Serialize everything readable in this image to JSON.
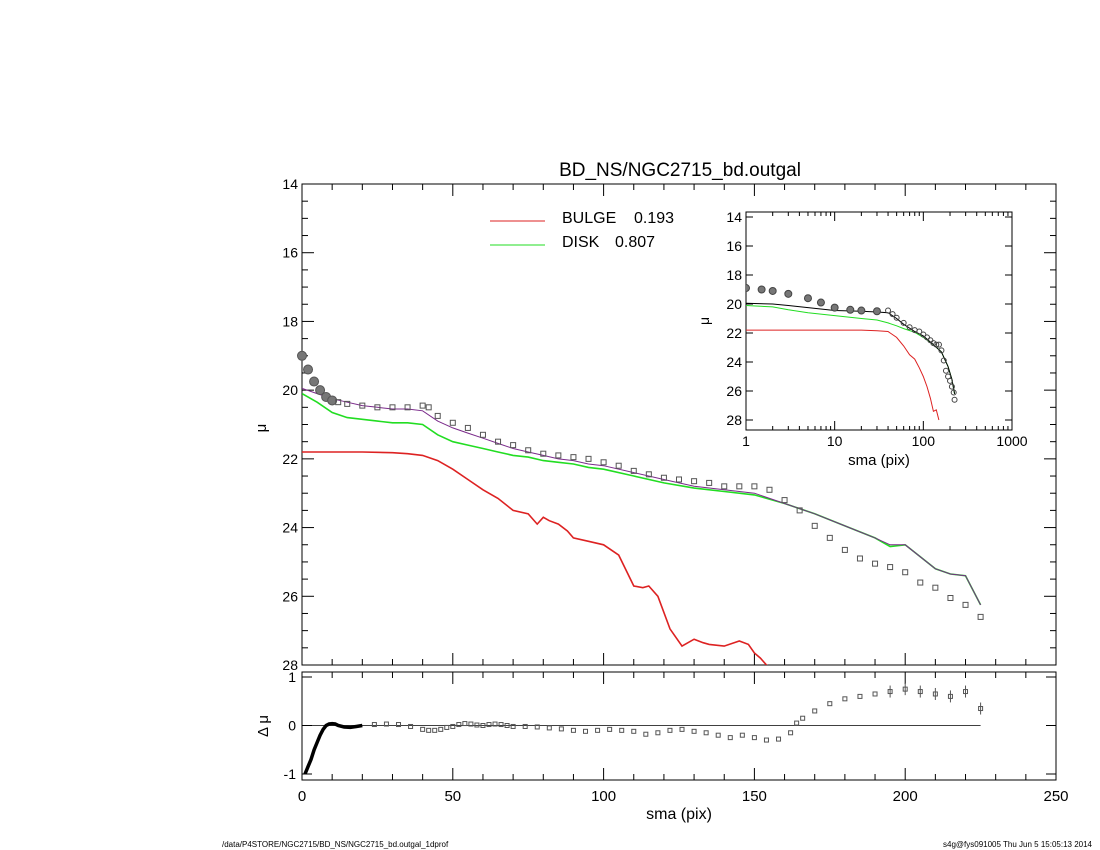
{
  "footer": {
    "path": "/data/P4STORE/NGC2715/BD_NS/NGC2715_bd.outgal_1dprof",
    "stamp": "s4g@fys091005  Thu Jun  5 15:05:13 2014"
  },
  "colors": {
    "bulge": "#dd2222",
    "disk": "#22dd22",
    "total": "#7a2a8a",
    "data": "#555555",
    "axis": "#000000"
  },
  "chart_data": [
    {
      "id": "main",
      "type": "line",
      "title": "BD_NS/NGC2715_bd.outgal",
      "xlabel": "",
      "ylabel": "μ",
      "xlim": [
        0,
        250
      ],
      "ylim": [
        28,
        14
      ],
      "y_ticks": [
        14,
        16,
        18,
        20,
        22,
        24,
        26,
        28
      ],
      "y_tick_labels": [
        "14",
        "16",
        "18",
        "20",
        "22",
        "24",
        "26",
        "28"
      ],
      "legend_placement": "top-center",
      "legend": [
        {
          "name": "BULGE",
          "value": "0.193",
          "color": "#dd2222"
        },
        {
          "name": "DISK",
          "value": "0.807",
          "color": "#22dd22"
        }
      ],
      "series": [
        {
          "key": "bulge",
          "style": "line",
          "color": "#dd2222",
          "x": [
            0,
            10,
            20,
            30,
            35,
            40,
            45,
            50,
            55,
            60,
            65,
            70,
            75,
            78,
            80,
            82,
            85,
            88,
            90,
            95,
            100,
            105,
            110,
            113,
            115,
            118,
            122,
            126,
            130,
            133,
            135,
            140,
            145,
            148,
            150,
            152,
            155
          ],
          "y": [
            21.8,
            21.8,
            21.8,
            21.82,
            21.85,
            21.9,
            22.05,
            22.3,
            22.6,
            22.9,
            23.15,
            23.5,
            23.6,
            23.9,
            23.7,
            23.8,
            23.9,
            24.1,
            24.3,
            24.4,
            24.5,
            24.8,
            25.7,
            25.75,
            25.7,
            26.0,
            26.95,
            27.45,
            27.25,
            27.35,
            27.4,
            27.45,
            27.3,
            27.4,
            27.65,
            27.8,
            28.1
          ]
        },
        {
          "key": "disk",
          "style": "line",
          "color": "#22dd22",
          "x": [
            0,
            5,
            10,
            15,
            20,
            25,
            30,
            35,
            40,
            45,
            50,
            55,
            60,
            65,
            70,
            75,
            80,
            85,
            90,
            95,
            100,
            110,
            120,
            130,
            140,
            150,
            160,
            170,
            180,
            190,
            195,
            200,
            205,
            210,
            215,
            220,
            225
          ],
          "y": [
            20.1,
            20.35,
            20.65,
            20.8,
            20.85,
            20.9,
            20.95,
            20.95,
            21.0,
            21.3,
            21.5,
            21.6,
            21.7,
            21.8,
            21.9,
            21.95,
            22.05,
            22.1,
            22.15,
            22.25,
            22.3,
            22.5,
            22.7,
            22.85,
            22.95,
            23.05,
            23.3,
            23.6,
            23.95,
            24.3,
            24.55,
            24.5,
            24.85,
            25.2,
            25.35,
            25.4,
            26.25
          ]
        },
        {
          "key": "total",
          "style": "line",
          "color": "#7a2a8a",
          "x": [
            0,
            5,
            10,
            15,
            20,
            25,
            30,
            35,
            40,
            45,
            50,
            55,
            60,
            65,
            70,
            75,
            80,
            85,
            90,
            95,
            100,
            110,
            120,
            130,
            140,
            150,
            160,
            170,
            180,
            190,
            195,
            200,
            205,
            210,
            215,
            220,
            225
          ],
          "y": [
            19.95,
            20.1,
            20.25,
            20.35,
            20.45,
            20.5,
            20.55,
            20.55,
            20.6,
            20.9,
            21.1,
            21.25,
            21.4,
            21.55,
            21.7,
            21.8,
            21.9,
            22.0,
            22.05,
            22.15,
            22.2,
            22.4,
            22.6,
            22.8,
            22.9,
            23.0,
            23.3,
            23.6,
            23.95,
            24.3,
            24.5,
            24.5,
            24.85,
            25.2,
            25.35,
            25.4,
            26.25
          ]
        },
        {
          "key": "data",
          "style": "markers",
          "color": "#555555",
          "x": [
            0,
            2,
            4,
            6,
            8,
            10,
            12,
            15,
            20,
            25,
            30,
            35,
            40,
            42,
            45,
            50,
            55,
            60,
            65,
            70,
            75,
            80,
            85,
            90,
            95,
            100,
            105,
            110,
            115,
            120,
            125,
            130,
            135,
            140,
            145,
            150,
            155,
            160,
            165,
            170,
            175,
            180,
            185,
            190,
            195,
            200,
            205,
            210,
            215,
            220,
            225
          ],
          "y": [
            19.0,
            19.4,
            19.75,
            20.0,
            20.2,
            20.3,
            20.35,
            20.4,
            20.45,
            20.5,
            20.5,
            20.5,
            20.45,
            20.5,
            20.75,
            20.95,
            21.1,
            21.3,
            21.5,
            21.6,
            21.75,
            21.85,
            21.9,
            21.95,
            22.0,
            22.1,
            22.2,
            22.35,
            22.45,
            22.55,
            22.6,
            22.65,
            22.7,
            22.8,
            22.8,
            22.8,
            22.9,
            23.2,
            23.5,
            23.95,
            24.3,
            24.65,
            24.9,
            25.05,
            25.15,
            25.3,
            25.6,
            25.75,
            26.05,
            26.25,
            26.6
          ]
        }
      ]
    },
    {
      "id": "residual",
      "type": "scatter",
      "xlabel": "sma (pix)",
      "ylabel": "Δ μ",
      "xlim": [
        0,
        250
      ],
      "ylim": [
        -1,
        1
      ],
      "x_ticks": [
        0,
        50,
        100,
        150,
        200,
        250
      ],
      "x_tick_labels": [
        "0",
        "50",
        "100",
        "150",
        "200",
        "250"
      ],
      "y_ticks": [
        1,
        0,
        -1
      ],
      "y_tick_labels": [
        "1",
        "0",
        "-1"
      ],
      "zero_line": true,
      "series": [
        {
          "key": "residual",
          "x": [
            1,
            2,
            3,
            4,
            5,
            6,
            7,
            8,
            9,
            10,
            11,
            12,
            14,
            16,
            18,
            20,
            24,
            28,
            32,
            36,
            40,
            42,
            44,
            46,
            48,
            50,
            52,
            54,
            56,
            58,
            60,
            62,
            64,
            66,
            68,
            70,
            74,
            78,
            82,
            86,
            90,
            94,
            98,
            102,
            106,
            110,
            114,
            118,
            122,
            126,
            130,
            134,
            138,
            142,
            146,
            150,
            154,
            158,
            162,
            164,
            166,
            170,
            175,
            180,
            185,
            190,
            195,
            200,
            205,
            210,
            215,
            220,
            225
          ],
          "y": [
            -1.0,
            -0.85,
            -0.7,
            -0.5,
            -0.35,
            -0.2,
            -0.08,
            0.0,
            0.03,
            0.04,
            0.03,
            0.0,
            -0.03,
            -0.04,
            -0.02,
            0.0,
            0.02,
            0.03,
            0.02,
            -0.02,
            -0.08,
            -0.1,
            -0.1,
            -0.08,
            -0.04,
            -0.02,
            0.02,
            0.04,
            0.03,
            0.01,
            0.0,
            0.02,
            0.03,
            0.02,
            0.0,
            -0.02,
            -0.02,
            -0.03,
            -0.05,
            -0.07,
            -0.1,
            -0.12,
            -0.1,
            -0.08,
            -0.1,
            -0.12,
            -0.18,
            -0.15,
            -0.1,
            -0.08,
            -0.12,
            -0.15,
            -0.2,
            -0.25,
            -0.2,
            -0.25,
            -0.3,
            -0.28,
            -0.15,
            0.05,
            0.15,
            0.3,
            0.45,
            0.55,
            0.6,
            0.65,
            0.7,
            0.75,
            0.7,
            0.65,
            0.6,
            0.7,
            0.35
          ]
        }
      ]
    },
    {
      "id": "inset",
      "type": "line",
      "xlabel": "sma (pix)",
      "ylabel": "μ",
      "x_scale": "log",
      "xlim": [
        1,
        1000
      ],
      "ylim": [
        28,
        14
      ],
      "x_ticks": [
        1,
        10,
        100,
        1000
      ],
      "x_tick_labels": [
        "1",
        "10",
        "100",
        "1000"
      ],
      "y_ticks": [
        14,
        16,
        18,
        20,
        22,
        24,
        26,
        28
      ],
      "y_tick_labels": [
        "14",
        "16",
        "18",
        "20",
        "22",
        "24",
        "26",
        "28"
      ],
      "series": [
        {
          "key": "bulge",
          "style": "line",
          "color": "#dd2222",
          "x": [
            1,
            5,
            10,
            20,
            30,
            40,
            50,
            60,
            70,
            80,
            90,
            100,
            110,
            120,
            130,
            140,
            150
          ],
          "y": [
            21.8,
            21.8,
            21.8,
            21.8,
            21.85,
            21.9,
            22.3,
            22.9,
            23.5,
            23.8,
            24.4,
            25.0,
            25.7,
            26.5,
            27.4,
            27.3,
            28.0
          ]
        },
        {
          "key": "disk",
          "style": "line",
          "color": "#22dd22",
          "x": [
            1,
            2,
            3,
            5,
            10,
            20,
            30,
            40,
            50,
            60,
            80,
            100,
            130,
            160,
            190,
            210,
            225
          ],
          "y": [
            20.1,
            20.2,
            20.4,
            20.6,
            20.8,
            21.0,
            21.1,
            21.3,
            21.5,
            21.7,
            21.95,
            22.3,
            22.8,
            23.3,
            24.3,
            25.2,
            26.2
          ]
        },
        {
          "key": "total",
          "style": "line",
          "color": "#000000",
          "x": [
            1,
            2,
            3,
            5,
            10,
            20,
            30,
            40,
            50,
            60,
            80,
            100,
            130,
            160,
            190,
            210,
            225
          ],
          "y": [
            19.95,
            20.0,
            20.1,
            20.25,
            20.45,
            20.5,
            20.55,
            20.6,
            21.0,
            21.4,
            21.9,
            22.2,
            22.8,
            23.3,
            24.3,
            25.2,
            26.2
          ]
        },
        {
          "key": "data",
          "style": "markers",
          "color": "#555555",
          "x": [
            1,
            1.5,
            2,
            3,
            5,
            7,
            10,
            15,
            20,
            30,
            40,
            45,
            50,
            60,
            70,
            80,
            90,
            100,
            110,
            120,
            130,
            140,
            150,
            160,
            170,
            180,
            190,
            200,
            210,
            220,
            225
          ],
          "y": [
            18.9,
            19.0,
            19.1,
            19.3,
            19.6,
            19.9,
            20.25,
            20.4,
            20.45,
            20.5,
            20.45,
            20.7,
            20.95,
            21.3,
            21.6,
            21.8,
            21.9,
            22.1,
            22.3,
            22.5,
            22.7,
            22.8,
            22.8,
            23.2,
            23.9,
            24.6,
            25.0,
            25.3,
            25.7,
            26.1,
            26.6
          ]
        }
      ]
    }
  ]
}
